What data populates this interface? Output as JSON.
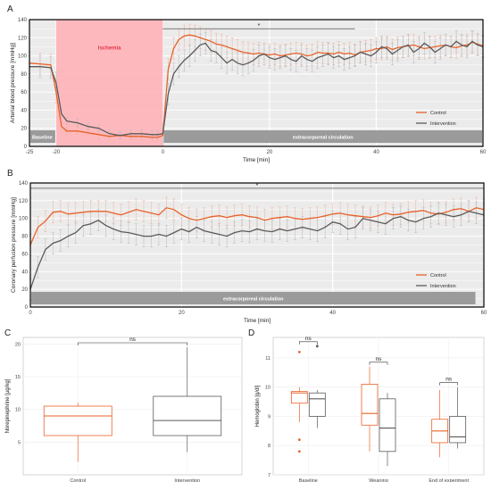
{
  "chart_data": [
    {
      "panel": "A",
      "type": "line",
      "ylabel": "Arterial blood pressure [mmHg]",
      "xlabel": "Time [min]",
      "xlim": [
        -25,
        60
      ],
      "ylim": [
        0,
        140
      ],
      "x_ticks": [
        "-25",
        "-20",
        "0",
        "20",
        "40",
        "60"
      ],
      "y_ticks": [
        "0",
        "20",
        "40",
        "60",
        "80",
        "100",
        "120",
        "140"
      ],
      "grid": true,
      "legend_position": "right",
      "legend": [
        "Control",
        "Intervention"
      ],
      "shaded_region": {
        "label": "Ischemia",
        "x_start": -20,
        "x_end": 0,
        "color": "#ffb3b8"
      },
      "bars": [
        {
          "label": "Baseline",
          "x_start": -25,
          "x_end": -20
        },
        {
          "label": "extracorporeal circulation",
          "x_start": 0,
          "x_end": 60
        }
      ],
      "significance": {
        "label": "*",
        "x_start": 0,
        "x_end": 36,
        "y": 130
      },
      "series": [
        {
          "name": "Control",
          "color": "#e8622a",
          "x": [
            -25,
            -23,
            -21,
            -20,
            -19,
            -18,
            -16,
            -14,
            -12,
            -10,
            -8,
            -6,
            -4,
            -2,
            -1,
            0,
            1,
            2,
            3,
            4,
            5,
            6,
            7,
            8,
            9,
            10,
            11,
            12,
            13,
            14,
            15,
            16,
            17,
            18,
            19,
            20,
            21,
            22,
            23,
            24,
            25,
            26,
            27,
            28,
            29,
            30,
            31,
            32,
            33,
            34,
            35,
            36,
            37,
            38,
            39,
            40,
            41,
            42,
            43,
            44,
            45,
            46,
            47,
            48,
            49,
            50,
            51,
            52,
            53,
            54,
            55,
            56,
            57,
            58,
            59,
            60
          ],
          "y": [
            92,
            91,
            90,
            60,
            22,
            17,
            17,
            15,
            13,
            11,
            12,
            11,
            11,
            10,
            10,
            12,
            85,
            108,
            118,
            122,
            123,
            122,
            120,
            118,
            116,
            113,
            112,
            110,
            108,
            106,
            104,
            103,
            102,
            103,
            102,
            101,
            102,
            100,
            101,
            102,
            103,
            102,
            100,
            101,
            104,
            103,
            103,
            102,
            104,
            102,
            103,
            101,
            104,
            105,
            106,
            108,
            108,
            110,
            107,
            109,
            110,
            111,
            112,
            110,
            108,
            109,
            110,
            111,
            112,
            110,
            109,
            111,
            112,
            115,
            113,
            111
          ]
        },
        {
          "name": "Intervention",
          "color": "#5a5a5a",
          "x": [
            -25,
            -23,
            -21,
            -20,
            -19,
            -18,
            -16,
            -14,
            -12,
            -10,
            -8,
            -6,
            -4,
            -2,
            -1,
            0,
            1,
            2,
            3,
            4,
            5,
            6,
            7,
            8,
            9,
            10,
            11,
            12,
            13,
            14,
            15,
            16,
            17,
            18,
            19,
            20,
            21,
            22,
            23,
            24,
            25,
            26,
            27,
            28,
            29,
            30,
            31,
            32,
            33,
            34,
            35,
            36,
            37,
            38,
            39,
            40,
            41,
            42,
            43,
            44,
            45,
            46,
            47,
            48,
            49,
            50,
            51,
            52,
            53,
            54,
            55,
            56,
            57,
            58,
            59,
            60
          ],
          "y": [
            88,
            88,
            87,
            70,
            36,
            28,
            26,
            22,
            20,
            14,
            12,
            14,
            14,
            13,
            13,
            14,
            58,
            80,
            88,
            95,
            100,
            106,
            112,
            114,
            106,
            104,
            98,
            92,
            96,
            92,
            90,
            92,
            95,
            100,
            102,
            98,
            96,
            98,
            100,
            96,
            94,
            100,
            96,
            94,
            98,
            100,
            102,
            98,
            100,
            96,
            98,
            100,
            104,
            102,
            100,
            104,
            110,
            108,
            102,
            106,
            110,
            112,
            104,
            108,
            114,
            110,
            104,
            108,
            112,
            110,
            116,
            112,
            110,
            116,
            112,
            110
          ]
        }
      ]
    },
    {
      "panel": "B",
      "type": "line",
      "ylabel": "Coronary perfusion pressure [mmHg]",
      "xlabel": "Time [min]",
      "xlim": [
        0,
        60
      ],
      "ylim": [
        0,
        140
      ],
      "x_ticks": [
        "0",
        "20",
        "40",
        "60"
      ],
      "y_ticks": [
        "0",
        "20",
        "40",
        "60",
        "80",
        "100",
        "120",
        "140"
      ],
      "grid": true,
      "legend_position": "right",
      "legend": [
        "Control",
        "Intervention"
      ],
      "bars": [
        {
          "label": "extracorporeal circulation",
          "x_start": 0,
          "x_end": 59
        }
      ],
      "significance": {
        "label": "*",
        "x_start": 0,
        "x_end": 60,
        "y": 134
      },
      "series": [
        {
          "name": "Control",
          "color": "#e8622a",
          "x": [
            0,
            1,
            2,
            3,
            4,
            5,
            6,
            7,
            8,
            9,
            10,
            11,
            12,
            13,
            14,
            15,
            16,
            17,
            18,
            19,
            20,
            21,
            22,
            23,
            24,
            25,
            26,
            27,
            28,
            29,
            30,
            31,
            32,
            33,
            34,
            35,
            36,
            37,
            38,
            39,
            40,
            41,
            42,
            43,
            44,
            45,
            46,
            47,
            48,
            49,
            50,
            51,
            52,
            53,
            54,
            55,
            56,
            57,
            58,
            59,
            60
          ],
          "y": [
            70,
            90,
            97,
            107,
            108,
            105,
            106,
            107,
            108,
            108,
            108,
            106,
            104,
            107,
            110,
            108,
            106,
            104,
            112,
            110,
            104,
            100,
            98,
            100,
            102,
            103,
            101,
            103,
            104,
            102,
            101,
            98,
            100,
            101,
            102,
            100,
            99,
            100,
            101,
            103,
            105,
            106,
            104,
            103,
            102,
            101,
            103,
            106,
            104,
            105,
            107,
            108,
            109,
            106,
            105,
            107,
            110,
            111,
            108,
            112,
            110
          ]
        },
        {
          "name": "Intervention",
          "color": "#5a5a5a",
          "x": [
            0,
            1,
            2,
            3,
            4,
            5,
            6,
            7,
            8,
            9,
            10,
            11,
            12,
            13,
            14,
            15,
            16,
            17,
            18,
            19,
            20,
            21,
            22,
            23,
            24,
            25,
            26,
            27,
            28,
            29,
            30,
            31,
            32,
            33,
            34,
            35,
            36,
            37,
            38,
            39,
            40,
            41,
            42,
            43,
            44,
            45,
            46,
            47,
            48,
            49,
            50,
            51,
            52,
            53,
            54,
            55,
            56,
            57,
            58,
            59,
            60
          ],
          "y": [
            20,
            45,
            65,
            72,
            75,
            80,
            84,
            92,
            94,
            98,
            92,
            88,
            85,
            84,
            82,
            80,
            80,
            82,
            80,
            84,
            88,
            85,
            90,
            86,
            84,
            82,
            80,
            84,
            86,
            85,
            88,
            86,
            85,
            88,
            86,
            88,
            90,
            88,
            86,
            90,
            96,
            94,
            88,
            90,
            100,
            98,
            96,
            94,
            100,
            102,
            98,
            96,
            100,
            102,
            106,
            104,
            102,
            104,
            108,
            106,
            104
          ]
        }
      ]
    },
    {
      "panel": "C",
      "type": "box",
      "ylabel": "Norepinephrine [µg/kg]",
      "categories": [
        "Control",
        "Intervention"
      ],
      "y_ticks": [
        "5",
        "10",
        "15",
        "20"
      ],
      "ylim": [
        0,
        21
      ],
      "significance": {
        "label": "ns",
        "from": 0,
        "to": 1
      },
      "boxes": [
        {
          "category": "Control",
          "color": "#e8622a",
          "whisker_low": 2,
          "q1": 6,
          "median": 9,
          "q3": 10.5,
          "whisker_high": 11
        },
        {
          "category": "Intervention",
          "color": "#5a5a5a",
          "whisker_low": 3.5,
          "q1": 6,
          "median": 8.3,
          "q3": 12,
          "whisker_high": 19.5
        }
      ]
    },
    {
      "panel": "D",
      "type": "box",
      "ylabel": "Hemoglobin [g/dl]",
      "categories": [
        "Baseline",
        "Weaning",
        "End of experiment"
      ],
      "y_ticks": [
        "7",
        "8",
        "9",
        "10",
        "11"
      ],
      "ylim": [
        7,
        11.7
      ],
      "series": [
        "Control",
        "Intervention"
      ],
      "significance": [
        {
          "label": "ns",
          "category": "Baseline"
        },
        {
          "label": "ns",
          "category": "Weaning"
        },
        {
          "label": "ns",
          "category": "End of experiment"
        }
      ],
      "boxes": [
        {
          "category": "Baseline",
          "series": "Control",
          "color": "#e8622a",
          "whisker_low": 8.8,
          "q1": 9.45,
          "median": 9.8,
          "q3": 9.85,
          "whisker_high": 10.0,
          "outliers": [
            11.2,
            8.2,
            7.8
          ]
        },
        {
          "category": "Baseline",
          "series": "Intervention",
          "color": "#5a5a5a",
          "whisker_low": 8.6,
          "q1": 9.0,
          "median": 9.6,
          "q3": 9.8,
          "whisker_high": 9.9,
          "outliers": [
            11.4
          ]
        },
        {
          "category": "Weaning",
          "series": "Control",
          "color": "#e8622a",
          "whisker_low": 7.8,
          "q1": 8.7,
          "median": 9.1,
          "q3": 10.1,
          "whisker_high": 10.7,
          "outliers": []
        },
        {
          "category": "Weaning",
          "series": "Intervention",
          "color": "#5a5a5a",
          "whisker_low": 7.3,
          "q1": 7.8,
          "median": 8.6,
          "q3": 9.6,
          "whisker_high": 9.8,
          "outliers": []
        },
        {
          "category": "End of experiment",
          "series": "Control",
          "color": "#e8622a",
          "whisker_low": 7.6,
          "q1": 8.1,
          "median": 8.5,
          "q3": 8.9,
          "whisker_high": 9.9,
          "outliers": []
        },
        {
          "category": "End of experiment",
          "series": "Intervention",
          "color": "#5a5a5a",
          "whisker_low": 7.9,
          "q1": 8.1,
          "median": 8.3,
          "q3": 9.0,
          "whisker_high": 10.0,
          "outliers": []
        }
      ]
    }
  ]
}
